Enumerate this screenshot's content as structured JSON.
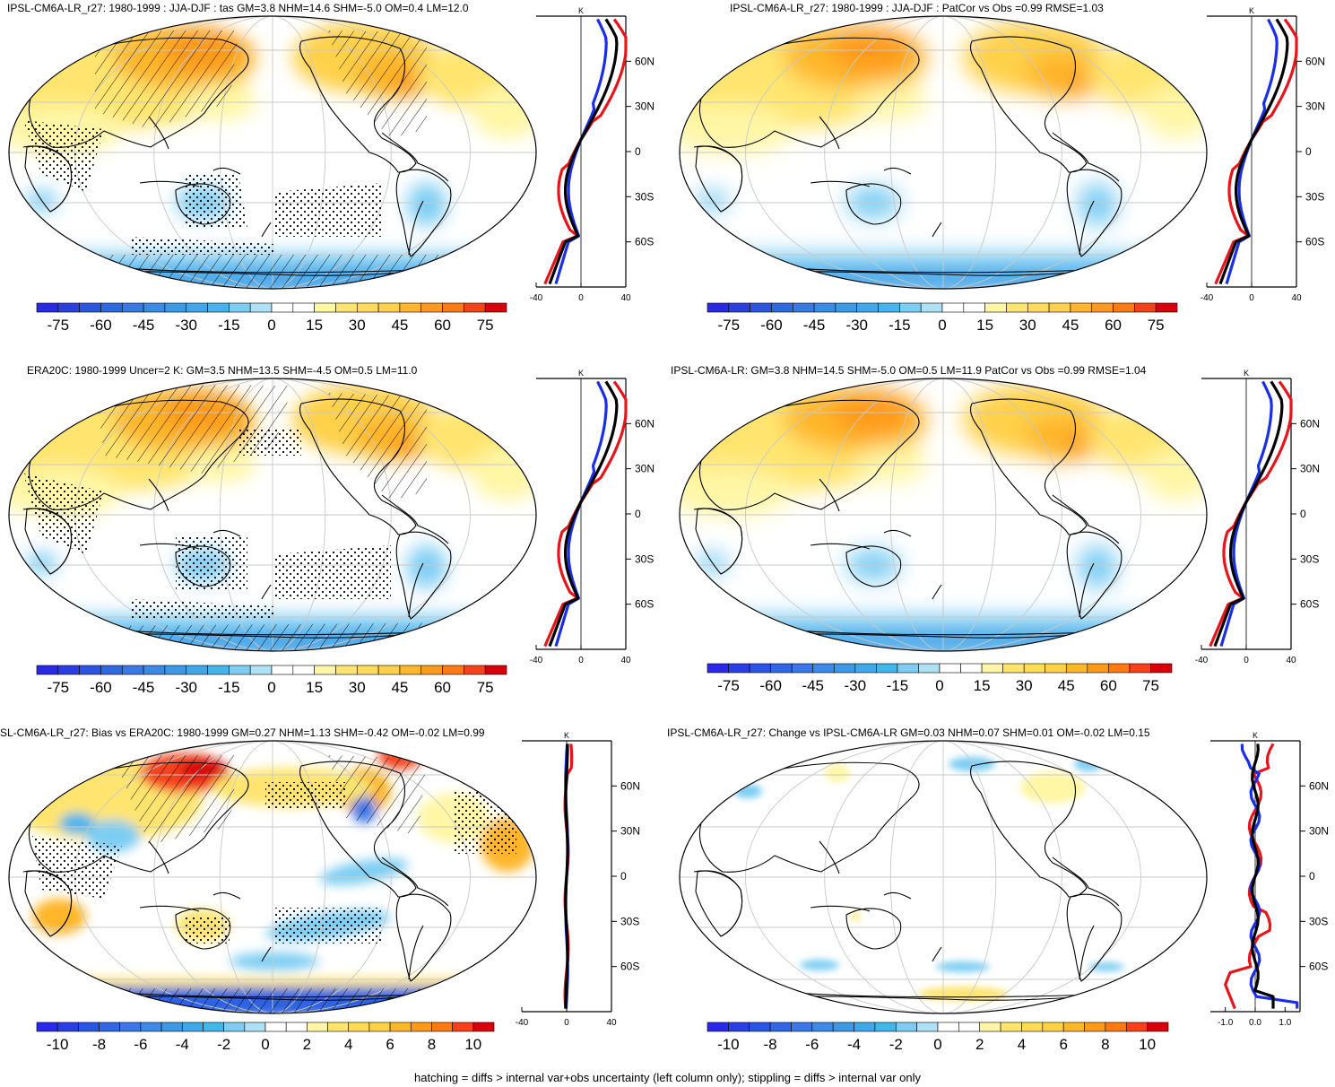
{
  "footer": "hatching = diffs > internal var+obs uncertainty (left column only); stippling = diffs > internal var only",
  "colors": {
    "bluemax": "#2a2ae6",
    "blue1": "#2b55e0",
    "blue2": "#3a78e6",
    "blue3": "#3b99e6",
    "blue4": "#43b4ec",
    "blue5": "#7dcdf3",
    "blue6": "#aee0f6",
    "yellow1": "#fff6a6",
    "yellow2": "#ffe570",
    "yellow3": "#ffd04a",
    "orange1": "#ffb62b",
    "orange2": "#ff9a1f",
    "orange3": "#ff7a14",
    "red1": "#f5421b",
    "red2": "#d9000d"
  },
  "chart_data": [
    {
      "type": "heatmap",
      "id": "p1",
      "title": "IPSL-CM6A-LR_r27: 1980-1999 : JJA-DJF : tas GM=3.8 NHM=14.6 SHM=-5.0 OM=0.4 LM=12.0",
      "stats": {
        "GM": 3.8,
        "NHM": 14.6,
        "SHM": -5.0,
        "OM": 0.4,
        "LM": 12.0
      },
      "colorbar_ticks": [
        "-75",
        "-60",
        "-45",
        "-30",
        "-15",
        "0",
        "15",
        "30",
        "45",
        "60",
        "75"
      ],
      "profile": {
        "unit_label": "K",
        "xlim": [
          -40,
          40
        ],
        "xticks": [
          "-40",
          "0",
          "40"
        ],
        "yticks": [
          "60N",
          "30N",
          "0",
          "30S",
          "60S"
        ]
      },
      "hatching": true,
      "stippling": true
    },
    {
      "type": "heatmap",
      "id": "p2",
      "title": "IPSL-CM6A-LR_r27: 1980-1999 : JJA-DJF : PatCor vs Obs =0.99 RMSE=1.03",
      "stats": {
        "PatCor": 0.99,
        "RMSE": 1.03
      },
      "colorbar_ticks": [
        "-75",
        "-60",
        "-45",
        "-30",
        "-15",
        "0",
        "15",
        "30",
        "45",
        "60",
        "75"
      ],
      "profile": {
        "unit_label": "K",
        "xlim": [
          -40,
          40
        ],
        "xticks": [
          "-40",
          "0",
          "40"
        ],
        "yticks": [
          "60N",
          "30N",
          "0",
          "30S",
          "60S"
        ]
      },
      "hatching": false,
      "stippling": false
    },
    {
      "type": "heatmap",
      "id": "p3",
      "title": "ERA20C: 1980-1999 Uncer=2 K: GM=3.5 NHM=13.5 SHM=-4.5 OM=0.5 LM=11.0",
      "stats": {
        "GM": 3.5,
        "NHM": 13.5,
        "SHM": -4.5,
        "OM": 0.5,
        "LM": 11.0
      },
      "colorbar_ticks": [
        "-75",
        "-60",
        "-45",
        "-30",
        "-15",
        "0",
        "15",
        "30",
        "45",
        "60",
        "75"
      ],
      "profile": {
        "unit_label": "K",
        "xlim": [
          -40,
          40
        ],
        "xticks": [
          "-40",
          "0",
          "40"
        ],
        "yticks": [
          "60N",
          "30N",
          "0",
          "30S",
          "60S"
        ]
      },
      "hatching": true,
      "stippling": true
    },
    {
      "type": "heatmap",
      "id": "p4",
      "title": "IPSL-CM6A-LR: GM=3.8 NHM=14.5 SHM=-5.0 OM=0.5 LM=11.9 PatCor vs Obs =0.99 RMSE=1.04",
      "stats": {
        "GM": 3.8,
        "NHM": 14.5,
        "SHM": -5.0,
        "OM": 0.5,
        "LM": 11.9,
        "PatCor": 0.99,
        "RMSE": 1.04
      },
      "colorbar_ticks": [
        "-75",
        "-60",
        "-45",
        "-30",
        "-15",
        "0",
        "15",
        "30",
        "45",
        "60",
        "75"
      ],
      "profile": {
        "unit_label": "K",
        "xlim": [
          -40,
          40
        ],
        "xticks": [
          "-40",
          "0",
          "40"
        ],
        "yticks": [
          "60N",
          "30N",
          "0",
          "30S",
          "60S"
        ]
      },
      "hatching": false,
      "stippling": false
    },
    {
      "type": "heatmap",
      "id": "p5",
      "title": "SL-CM6A-LR_r27: Bias vs ERA20C: 1980-1999 GM=0.27 NHM=1.13 SHM=-0.42 OM=-0.02 LM=0.99",
      "stats": {
        "GM": 0.27,
        "NHM": 1.13,
        "SHM": -0.42,
        "OM": -0.02,
        "LM": 0.99
      },
      "colorbar_ticks": [
        "-10",
        "-8",
        "-6",
        "-4",
        "-2",
        "0",
        "2",
        "4",
        "6",
        "8",
        "10"
      ],
      "profile": {
        "unit_label": "K",
        "xlim": [
          -40,
          40
        ],
        "xticks": [
          "-40",
          "0",
          "40"
        ],
        "yticks": [
          "60N",
          "30N",
          "0",
          "30S",
          "60S"
        ]
      },
      "hatching": true,
      "stippling": true
    },
    {
      "type": "heatmap",
      "id": "p6",
      "title": "IPSL-CM6A-LR_r27: Change vs IPSL-CM6A-LR GM=0.03 NHM=0.07 SHM=0.01 OM=-0.02 LM=0.15",
      "stats": {
        "GM": 0.03,
        "NHM": 0.07,
        "SHM": 0.01,
        "OM": -0.02,
        "LM": 0.15
      },
      "colorbar_ticks": [
        "-10",
        "-8",
        "-6",
        "-4",
        "-2",
        "0",
        "2",
        "4",
        "6",
        "8",
        "10"
      ],
      "profile": {
        "unit_label": "K",
        "xlim": [
          -1.5,
          1.5
        ],
        "xticks": [
          "-1.0",
          "0.0",
          "1.0"
        ],
        "yticks": [
          "60N",
          "30N",
          "0",
          "30S",
          "60S"
        ]
      },
      "hatching": false,
      "stippling": false
    }
  ]
}
